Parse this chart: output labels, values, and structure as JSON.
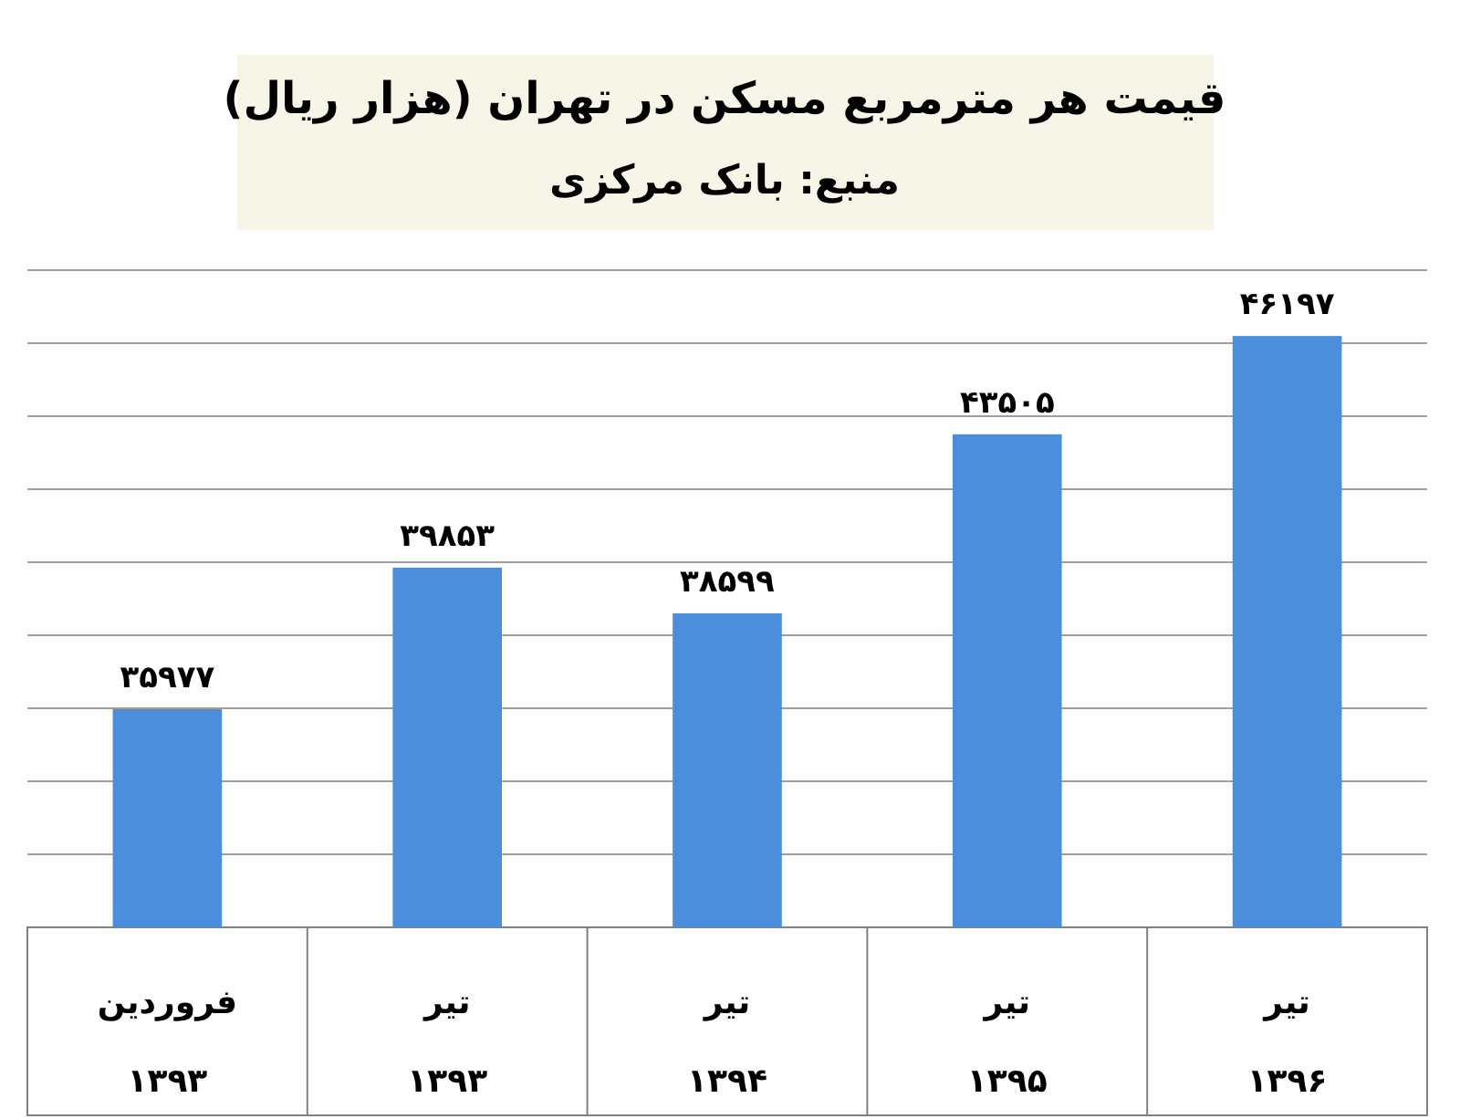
{
  "chart_data": {
    "type": "bar",
    "title": "قیمت هر مترمربع مسکن در تهران (هزار ریال)",
    "subtitle": "منبع: بانک مرکزی",
    "categories": [
      "فروردین ۱۳۹۳",
      "تیر ۱۳۹۳",
      "تیر ۱۳۹۴",
      "تیر ۱۳۹۵",
      "تیر ۱۳۹۶"
    ],
    "values": [
      35977,
      39853,
      38599,
      43505,
      46197
    ],
    "value_labels": [
      "۳۵۹۷۷",
      "۳۹۸۵۳",
      "۳۸۵۹۹",
      "۴۳۵۰۵",
      "۴۶۱۹۷"
    ],
    "color": "#4a8edc",
    "ylim": [
      30000,
      48000
    ],
    "grid": "y",
    "tick_labels": "x"
  }
}
